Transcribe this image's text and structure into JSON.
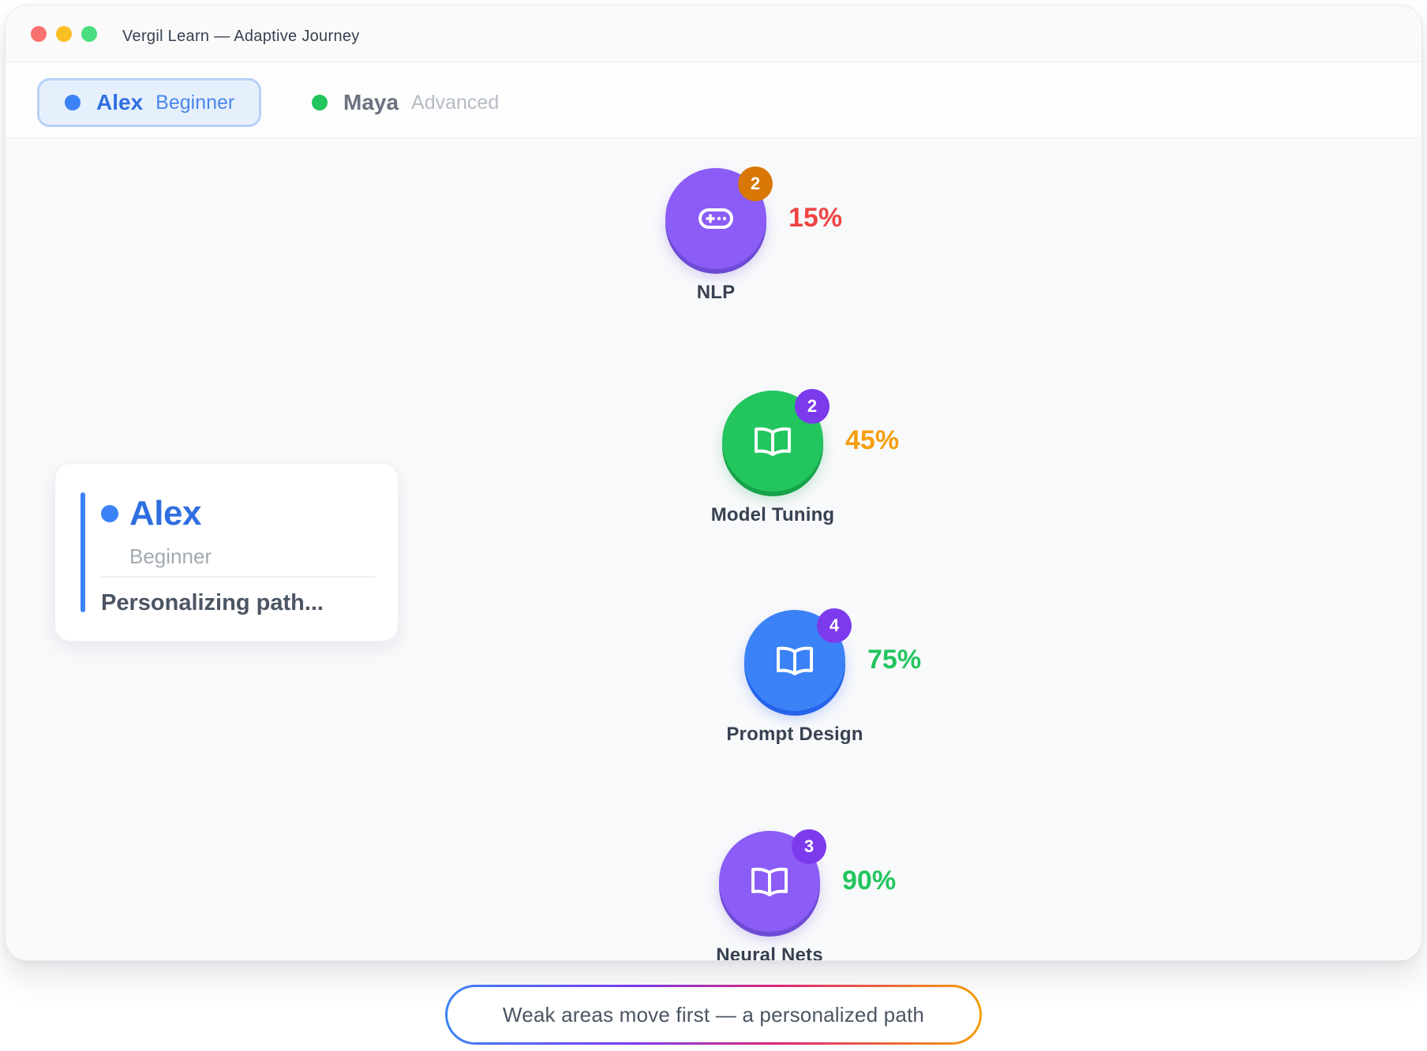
{
  "window": {
    "title": "Vergil Learn — Adaptive Journey"
  },
  "tabs": [
    {
      "name": "Alex",
      "level": "Beginner",
      "dot_color": "#3b82f6",
      "active": true
    },
    {
      "name": "Maya",
      "level": "Advanced",
      "dot_color": "#22c55e",
      "active": false
    }
  ],
  "profile": {
    "name": "Alex",
    "level": "Beginner",
    "status": "Personalizing path..."
  },
  "nodes": [
    {
      "label": "NLP",
      "badge": "2",
      "percent": "15%",
      "icon": "gamepad-icon",
      "color": "#8b5cf6",
      "badge_color": "#d97706",
      "percent_color": "#ef4444"
    },
    {
      "label": "Model Tuning",
      "badge": "2",
      "percent": "45%",
      "icon": "book-icon",
      "color": "#22c55e",
      "badge_color": "#7c3aed",
      "percent_color": "#f59e0b"
    },
    {
      "label": "Prompt Design",
      "badge": "4",
      "percent": "75%",
      "icon": "book-icon",
      "color": "#3b82f6",
      "badge_color": "#7c3aed",
      "percent_color": "#22c55e"
    },
    {
      "label": "Neural Nets",
      "badge": "3",
      "percent": "90%",
      "icon": "book-icon",
      "color": "#8b5cf6",
      "badge_color": "#7c3aed",
      "percent_color": "#22c55e"
    }
  ],
  "caption": "Weak areas move first — a personalized path"
}
